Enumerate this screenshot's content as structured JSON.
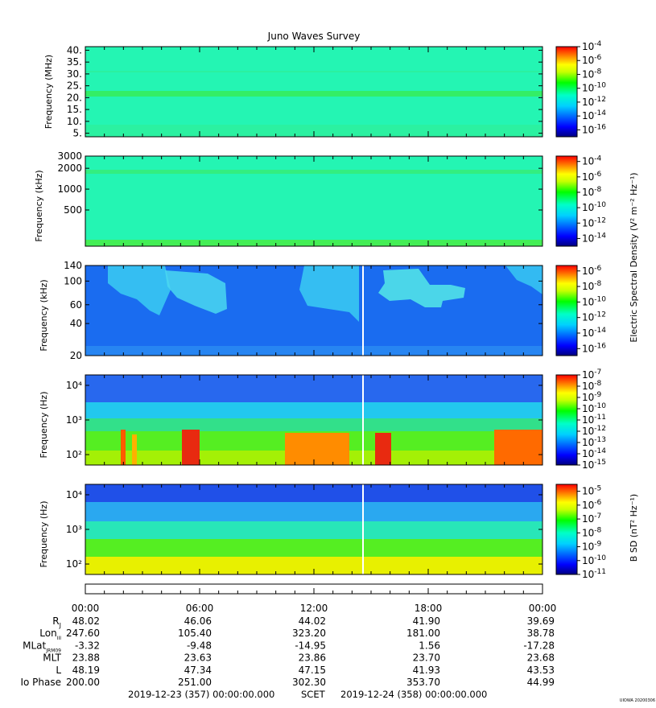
{
  "title": "Juno Waves Survey",
  "footer": {
    "start_time": "2019-12-23 (357) 00:00:00.000",
    "scet_label": "SCET",
    "end_time": "2019-12-24 (358) 00:00:00.000",
    "credit": "UIOWA 20200306"
  },
  "colorbar_labels": {
    "electric": "Electric Spectral Density (V² m⁻² Hz⁻¹)",
    "magnetic": "B SD (nT² Hz⁻¹)"
  },
  "chart_data": [
    {
      "type": "heatmap",
      "panel": "hfr_high",
      "ylabel": "Frequency (MHz)",
      "yscale": "linear",
      "ylim": [
        3.5,
        41.5
      ],
      "yticks": [
        "40.",
        "35.",
        "30.",
        "25.",
        "20.",
        "15.",
        "10.",
        "5."
      ],
      "ytick_values": [
        40,
        35,
        30,
        25,
        20,
        15,
        10,
        5
      ],
      "colorbar": {
        "scale": "log",
        "exponent_range": [
          -17,
          -4
        ],
        "tick_exponents": [
          -4,
          -6,
          -8,
          -10,
          -12,
          -14,
          -16
        ]
      }
    },
    {
      "type": "heatmap",
      "panel": "hfr_low",
      "ylabel": "Frequency (kHz)",
      "yscale": "log",
      "ylim": [
        150,
        3000
      ],
      "yticks": [
        "3000",
        "2000",
        "1000",
        "500"
      ],
      "ytick_values": [
        3000,
        2000,
        1000,
        500
      ],
      "colorbar": {
        "scale": "log",
        "exponent_range": [
          -15,
          -3.3
        ],
        "tick_exponents": [
          -4,
          -6,
          -8,
          -10,
          -12,
          -14
        ]
      }
    },
    {
      "type": "heatmap",
      "panel": "lfr_high",
      "ylabel": "Frequency (kHz)",
      "yscale": "log",
      "ylim": [
        20,
        140
      ],
      "yticks": [
        "140",
        "100",
        "60",
        "40",
        "20"
      ],
      "ytick_values": [
        140,
        100,
        60,
        40,
        20
      ],
      "colorbar": {
        "scale": "log",
        "exponent_range": [
          -16.9,
          -5.3
        ],
        "tick_exponents": [
          -6,
          -8,
          -10,
          -12,
          -14,
          -16
        ]
      }
    },
    {
      "type": "heatmap",
      "panel": "lfr_low_electric",
      "ylabel": "Frequency (Hz)",
      "yscale": "log",
      "ylim": [
        50,
        20000
      ],
      "yticks": [
        "10⁴",
        "10³",
        "10²"
      ],
      "ytick_values": [
        10000,
        1000,
        100
      ],
      "colorbar": {
        "scale": "log",
        "exponent_range": [
          -15,
          -7
        ],
        "tick_exponents": [
          -7,
          -8,
          -9,
          -10,
          -11,
          -12,
          -13,
          -14,
          -15
        ]
      }
    },
    {
      "type": "heatmap",
      "panel": "lfr_low_magnetic",
      "ylabel": "Frequency (Hz)",
      "yscale": "log",
      "ylim": [
        50,
        20000
      ],
      "yticks": [
        "10⁴",
        "10³",
        "10²"
      ],
      "ytick_values": [
        10000,
        1000,
        100
      ],
      "colorbar": {
        "scale": "log",
        "exponent_range": [
          -11,
          -4.5
        ],
        "tick_exponents": [
          -5,
          -6,
          -7,
          -8,
          -9,
          -10,
          -11
        ]
      }
    }
  ],
  "ephemeris": {
    "row_labels": [
      "RJ",
      "LonIII",
      "MLatJRM09",
      "MLT",
      "L",
      "Io Phase"
    ],
    "times": [
      "00:00",
      "06:00",
      "12:00",
      "18:00",
      "00:00"
    ],
    "rows": [
      [
        "48.02",
        "46.06",
        "44.02",
        "41.90",
        "39.69"
      ],
      [
        "247.60",
        "105.40",
        "323.20",
        "181.00",
        "38.78"
      ],
      [
        "-3.32",
        "-9.48",
        "-14.95",
        "1.56",
        "-17.28"
      ],
      [
        "23.88",
        "23.63",
        "23.86",
        "23.70",
        "23.68"
      ],
      [
        "48.19",
        "47.34",
        "47.15",
        "41.93",
        "43.53"
      ],
      [
        "200.00",
        "251.00",
        "302.30",
        "353.70",
        "44.99"
      ]
    ]
  }
}
